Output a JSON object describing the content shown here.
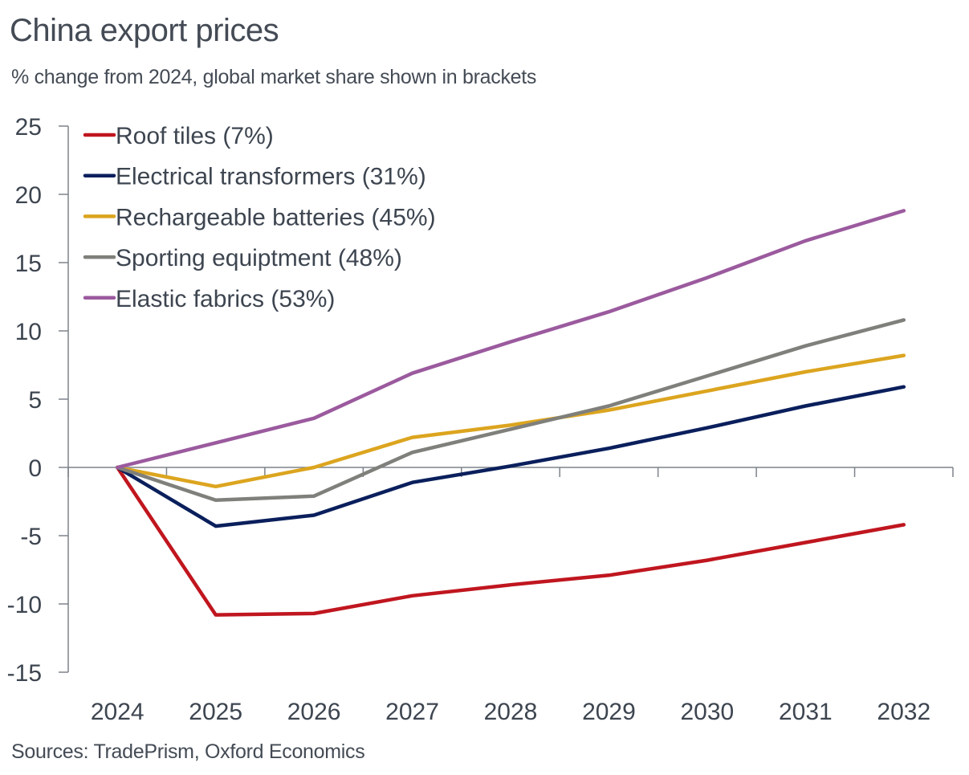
{
  "header": {
    "title": "China export prices",
    "subtitle": "% change from 2024, global market share shown in brackets"
  },
  "footer": {
    "source": "Sources: TradePrism, Oxford Economics"
  },
  "chart_data": {
    "type": "line",
    "title": "China export prices",
    "subtitle": "% change from 2024, global market share shown in brackets",
    "xlabel": "",
    "ylabel": "",
    "x": [
      "2024",
      "2025",
      "2026",
      "2027",
      "2028",
      "2029",
      "2030",
      "2031",
      "2032"
    ],
    "ylim": [
      -15,
      25
    ],
    "yticks": [
      25,
      20,
      15,
      10,
      5,
      0,
      -5,
      -10,
      -15
    ],
    "grid": false,
    "legend_position": "top-left",
    "series": [
      {
        "name": "Roof tiles (7%)",
        "color": "#c0161f",
        "values": [
          0,
          -10.8,
          -10.7,
          -9.4,
          -8.6,
          -7.9,
          -6.8,
          -5.5,
          -4.2
        ]
      },
      {
        "name": "Electrical transformers (31%)",
        "color": "#0a1f5c",
        "values": [
          0,
          -4.3,
          -3.5,
          -1.1,
          0.1,
          1.4,
          2.9,
          4.5,
          5.9
        ]
      },
      {
        "name": "Rechargeable batteries (45%)",
        "color": "#dca51f",
        "values": [
          0,
          -1.4,
          0.0,
          2.2,
          3.1,
          4.2,
          5.6,
          7.0,
          8.2
        ]
      },
      {
        "name": "Sporting equiptment (48%)",
        "color": "#7f7f7b",
        "values": [
          0,
          -2.4,
          -2.1,
          1.1,
          2.8,
          4.5,
          6.7,
          8.9,
          10.8
        ]
      },
      {
        "name": "Elastic fabrics (53%)",
        "color": "#9b5a9e",
        "values": [
          0,
          1.8,
          3.6,
          6.9,
          9.2,
          11.4,
          13.9,
          16.6,
          18.8
        ]
      }
    ],
    "source": "Sources: TradePrism, Oxford Economics"
  }
}
